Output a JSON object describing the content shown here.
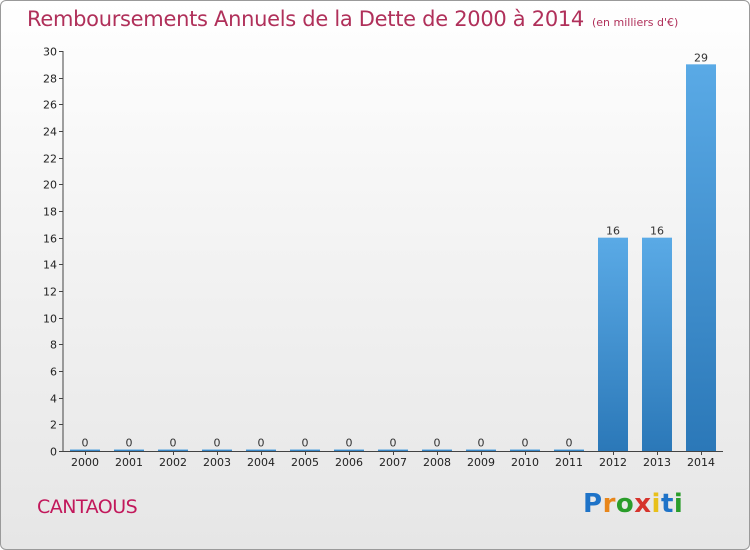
{
  "chart_data": {
    "type": "bar",
    "title": "Remboursements Annuels de la Dette de 2000 à 2014",
    "subtitle": "(en milliers d'€)",
    "categories": [
      "2000",
      "2001",
      "2002",
      "2003",
      "2004",
      "2005",
      "2006",
      "2007",
      "2008",
      "2009",
      "2010",
      "2011",
      "2012",
      "2013",
      "2014"
    ],
    "values": [
      0,
      0,
      0,
      0,
      0,
      0,
      0,
      0,
      0,
      0,
      0,
      0,
      16,
      16,
      29
    ],
    "ylim": [
      0,
      30
    ],
    "yticks": [
      0,
      2,
      4,
      6,
      8,
      10,
      12,
      14,
      16,
      18,
      20,
      22,
      24,
      26,
      28,
      30
    ],
    "xlabel": "",
    "ylabel": "",
    "grid": false,
    "bar_color": "#3d8fd0"
  },
  "commune": "CANTAOUS",
  "logo": {
    "text": "Proxiti",
    "letters": [
      "P",
      "r",
      "o",
      "x",
      "i",
      "t",
      "i"
    ]
  }
}
